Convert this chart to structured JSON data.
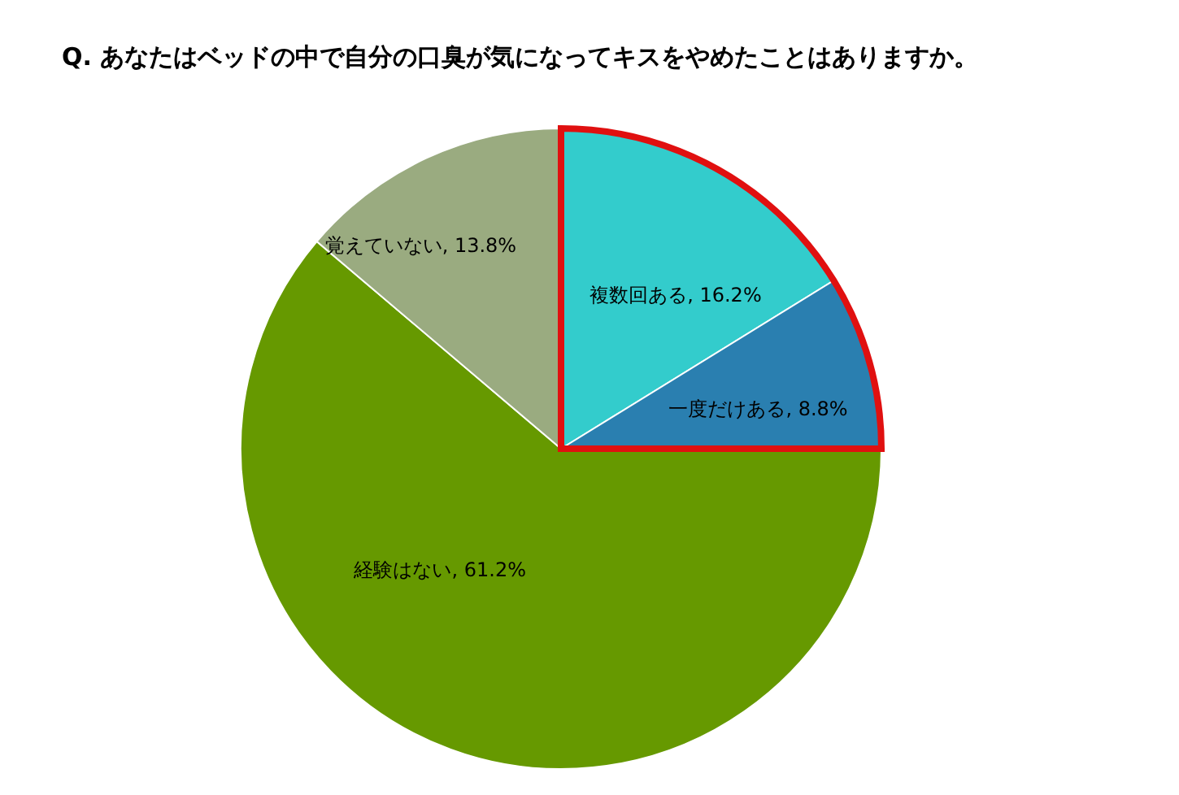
{
  "chart_data": {
    "type": "pie",
    "title": "Q. あなたはベッドの中で自分の口臭が気になってキスをやめたことはありますか。",
    "categories": [
      "複数回ある",
      "一度だけある",
      "経験はない",
      "覚えていない"
    ],
    "values": [
      16.2,
      8.8,
      61.2,
      13.8
    ],
    "colors": [
      "#33cccc",
      "#2a7fb0",
      "#669900",
      "#9aab80"
    ],
    "value_labels": [
      ", 16.2%",
      ", 8.8%",
      ", 61.2%",
      ", 13.8%"
    ]
  }
}
